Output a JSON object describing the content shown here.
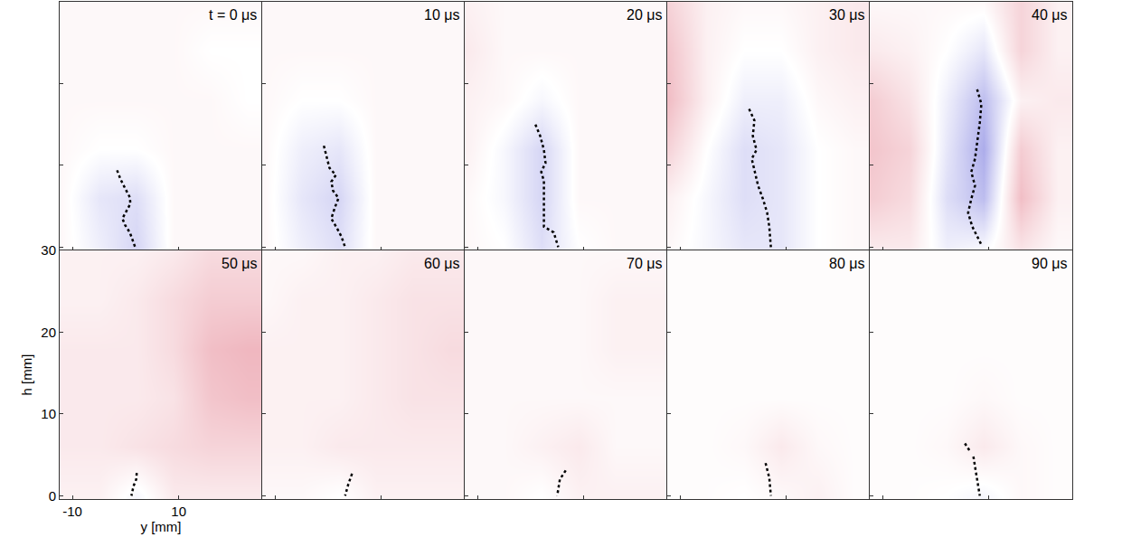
{
  "chart_data": {
    "type": "heatmap",
    "x_label": "y [mm]",
    "y_label": "h [mm]",
    "xlim": [
      -12.4,
      25.7
    ],
    "xticks": [
      -10,
      10
    ],
    "ylim": [
      -0.4,
      30
    ],
    "yticks": [
      0,
      10,
      20,
      30
    ],
    "grid": false,
    "zlim": [
      -1,
      1
    ],
    "grid_x": [
      -12,
      -5,
      2,
      9,
      16,
      23
    ],
    "grid_y": [
      0,
      6,
      12,
      18,
      24,
      30
    ],
    "line_style": "dotted",
    "color": "#000000",
    "panels": [
      {
        "label": "t = 0 μs",
        "field": [
          [
            0.05,
            -0.1,
            -0.25,
            0.05,
            0.05,
            0.05
          ],
          [
            0.05,
            -0.15,
            -0.2,
            0.05,
            0.05,
            0.05
          ],
          [
            0.05,
            0.0,
            0.0,
            0.05,
            0.05,
            0.05
          ],
          [
            0.05,
            0.05,
            0.05,
            0.05,
            0.05,
            0.0
          ],
          [
            0.05,
            0.05,
            0.05,
            0.05,
            0.0,
            0.0
          ],
          [
            0.05,
            0.05,
            0.05,
            0.05,
            0.05,
            0.05
          ]
        ],
        "crack": {
          "x": [
            -1.6,
            -0.95,
            -0.1,
            0.8,
            0.9,
            0.1,
            -0.6,
            -0.1,
            0.8,
            1.3,
            1.8
          ],
          "y": [
            9.4,
            8.3,
            7.2,
            6.1,
            5.3,
            4.4,
            3.5,
            2.7,
            1.8,
            0.9,
            0
          ]
        }
      },
      {
        "label": "10 μs",
        "field": [
          [
            0.05,
            -0.1,
            -0.2,
            0.05,
            0.05,
            0.05
          ],
          [
            0.05,
            -0.15,
            -0.25,
            0.05,
            0.05,
            0.05
          ],
          [
            0.05,
            -0.1,
            -0.15,
            0.05,
            0.05,
            0.05
          ],
          [
            0.05,
            0.0,
            0.0,
            0.05,
            0.05,
            0.05
          ],
          [
            0.05,
            0.05,
            0.05,
            0.05,
            0.05,
            0.05
          ],
          [
            0.05,
            0.05,
            0.05,
            0.05,
            0.05,
            0.05
          ]
        ],
        "crack": {
          "x": [
            -0.8,
            -0.26,
            0.25,
            1.45,
            0.6,
            0.93,
            1.96,
            1.3,
            0.6,
            1.6,
            2.5,
            3.2
          ],
          "y": [
            12.4,
            11.0,
            9.7,
            8.8,
            8.0,
            6.9,
            6.0,
            4.9,
            3.5,
            2.4,
            1.3,
            0
          ]
        }
      },
      {
        "label": "20 μs",
        "field": [
          [
            0.05,
            0.0,
            -0.2,
            0.0,
            0.05,
            0.05
          ],
          [
            0.05,
            -0.05,
            -0.25,
            0.05,
            0.05,
            0.05
          ],
          [
            0.1,
            -0.05,
            -0.25,
            0.05,
            0.05,
            0.05
          ],
          [
            0.1,
            0.05,
            -0.05,
            0.05,
            0.05,
            0.05
          ],
          [
            0.15,
            0.05,
            0.05,
            0.05,
            0.05,
            0.05
          ],
          [
            0.1,
            0.05,
            0.05,
            0.05,
            0.05,
            0.05
          ]
        ],
        "crack": {
          "x": [
            0.9,
            1.8,
            2.5,
            2.8,
            2.0,
            2.5,
            2.5,
            2.5,
            2.5,
            4.35,
            5.2
          ],
          "y": [
            15.0,
            13.6,
            11.9,
            10.3,
            9.2,
            8.1,
            6.4,
            4.2,
            2.5,
            1.8,
            0
          ]
        }
      },
      {
        "label": "30 μs",
        "field": [
          [
            0.05,
            -0.05,
            -0.15,
            -0.15,
            0.0,
            0.05
          ],
          [
            0.1,
            -0.05,
            -0.2,
            -0.15,
            0.0,
            0.05
          ],
          [
            0.3,
            0.0,
            -0.2,
            -0.15,
            0.0,
            0.05
          ],
          [
            0.45,
            0.1,
            -0.1,
            -0.1,
            0.05,
            0.1
          ],
          [
            0.4,
            0.1,
            0.0,
            0.0,
            0.1,
            0.15
          ],
          [
            0.3,
            0.1,
            0.05,
            0.05,
            0.1,
            0.15
          ]
        ],
        "crack": {
          "x": [
            3.0,
            4.0,
            3.7,
            4.4,
            3.5,
            4.7,
            5.6,
            6.4,
            6.8,
            7.1
          ],
          "y": [
            16.9,
            15.5,
            13.6,
            11.9,
            10.8,
            7.5,
            5.9,
            4.2,
            2.5,
            0
          ]
        }
      },
      {
        "label": "40 μs",
        "field": [
          [
            0.15,
            0.15,
            -0.1,
            -0.05,
            0.2,
            0.05
          ],
          [
            0.35,
            0.25,
            -0.2,
            -0.4,
            0.45,
            0.1
          ],
          [
            0.4,
            0.3,
            -0.15,
            -0.5,
            0.35,
            0.1
          ],
          [
            0.35,
            0.2,
            -0.1,
            -0.4,
            0.1,
            0.15
          ],
          [
            0.15,
            0.1,
            0.0,
            -0.15,
            0.3,
            0.1
          ],
          [
            0.05,
            0.05,
            0.05,
            0.05,
            0.3,
            0.1
          ]
        ],
        "crack": {
          "x": [
            7.8,
            8.6,
            8.3,
            7.8,
            7.4,
            6.7,
            7.4,
            6.7,
            6.1,
            6.9,
            7.8,
            8.6
          ],
          "y": [
            19.3,
            17.5,
            15.2,
            13.0,
            10.8,
            9.2,
            7.5,
            5.9,
            4.2,
            2.5,
            1.4,
            0.3
          ]
        }
      },
      {
        "label": "50 μs",
        "field": [
          [
            0.1,
            0.1,
            -0.05,
            0.15,
            0.15,
            0.15
          ],
          [
            0.15,
            0.15,
            0.2,
            0.25,
            0.3,
            0.3
          ],
          [
            0.15,
            0.15,
            0.15,
            0.2,
            0.4,
            0.45
          ],
          [
            0.15,
            0.15,
            0.15,
            0.25,
            0.45,
            0.5
          ],
          [
            0.1,
            0.1,
            0.15,
            0.25,
            0.35,
            0.35
          ],
          [
            0.1,
            0.1,
            0.1,
            0.15,
            0.25,
            0.25
          ]
        ],
        "crack": {
          "x": [
            2.1,
            2.0,
            1.5,
            1.1
          ],
          "y": [
            2.8,
            2.0,
            1.2,
            0
          ]
        }
      },
      {
        "label": "60 μs",
        "field": [
          [
            0.05,
            0.05,
            0.0,
            0.1,
            0.1,
            0.1
          ],
          [
            0.1,
            0.1,
            0.15,
            0.15,
            0.15,
            0.15
          ],
          [
            0.1,
            0.1,
            0.1,
            0.15,
            0.2,
            0.2
          ],
          [
            0.1,
            0.1,
            0.1,
            0.15,
            0.2,
            0.25
          ],
          [
            0.05,
            0.1,
            0.1,
            0.15,
            0.2,
            0.2
          ],
          [
            0.05,
            0.05,
            0.1,
            0.1,
            0.15,
            0.15
          ]
        ],
        "crack": {
          "x": [
            4.5,
            3.8,
            3.2
          ],
          "y": [
            2.7,
            1.4,
            0
          ]
        }
      },
      {
        "label": "70 μs",
        "field": [
          [
            0.05,
            0.05,
            0.0,
            0.1,
            0.1,
            0.1
          ],
          [
            0.05,
            0.05,
            0.1,
            0.15,
            0.05,
            0.05
          ],
          [
            0.05,
            0.05,
            0.05,
            0.05,
            0.05,
            0.05
          ],
          [
            0.05,
            0.05,
            0.05,
            0.05,
            0.1,
            0.1
          ],
          [
            0.05,
            0.05,
            0.05,
            0.05,
            0.1,
            0.1
          ],
          [
            0.05,
            0.05,
            0.05,
            0.05,
            0.05,
            0.05
          ]
        ],
        "crack": {
          "x": [
            6.6,
            5.5,
            5.0
          ],
          "y": [
            3.1,
            2.0,
            0
          ]
        }
      },
      {
        "label": "80 μs",
        "field": [
          [
            0.02,
            0.02,
            0.0,
            0.05,
            0.1,
            0.02
          ],
          [
            0.02,
            0.02,
            0.05,
            0.15,
            0.05,
            0.02
          ],
          [
            0.02,
            0.02,
            0.02,
            0.02,
            0.02,
            0.02
          ],
          [
            0.02,
            0.02,
            0.02,
            0.02,
            0.02,
            0.02
          ],
          [
            0.02,
            0.02,
            0.02,
            0.02,
            0.02,
            0.02
          ],
          [
            0.02,
            0.02,
            0.02,
            0.02,
            0.02,
            0.02
          ]
        ],
        "crack": {
          "x": [
            6.1,
            6.8,
            7.1
          ],
          "y": [
            4.0,
            2.2,
            0
          ]
        }
      },
      {
        "label": "90 μs",
        "field": [
          [
            0.02,
            0.02,
            0.0,
            -0.05,
            0.05,
            0.02
          ],
          [
            0.02,
            0.02,
            0.05,
            0.15,
            0.05,
            0.02
          ],
          [
            0.02,
            0.02,
            0.02,
            0.05,
            0.02,
            0.02
          ],
          [
            0.02,
            0.02,
            0.02,
            0.02,
            0.02,
            0.02
          ],
          [
            0.02,
            0.02,
            0.02,
            0.02,
            0.02,
            0.02
          ],
          [
            0.02,
            0.02,
            0.02,
            0.02,
            0.02,
            0.02
          ]
        ],
        "crack": {
          "x": [
            5.5,
            6.6,
            null,
            7.1,
            7.8,
            8.3
          ],
          "y": [
            6.4,
            5.3,
            null,
            4.8,
            2.0,
            0
          ]
        }
      }
    ]
  }
}
